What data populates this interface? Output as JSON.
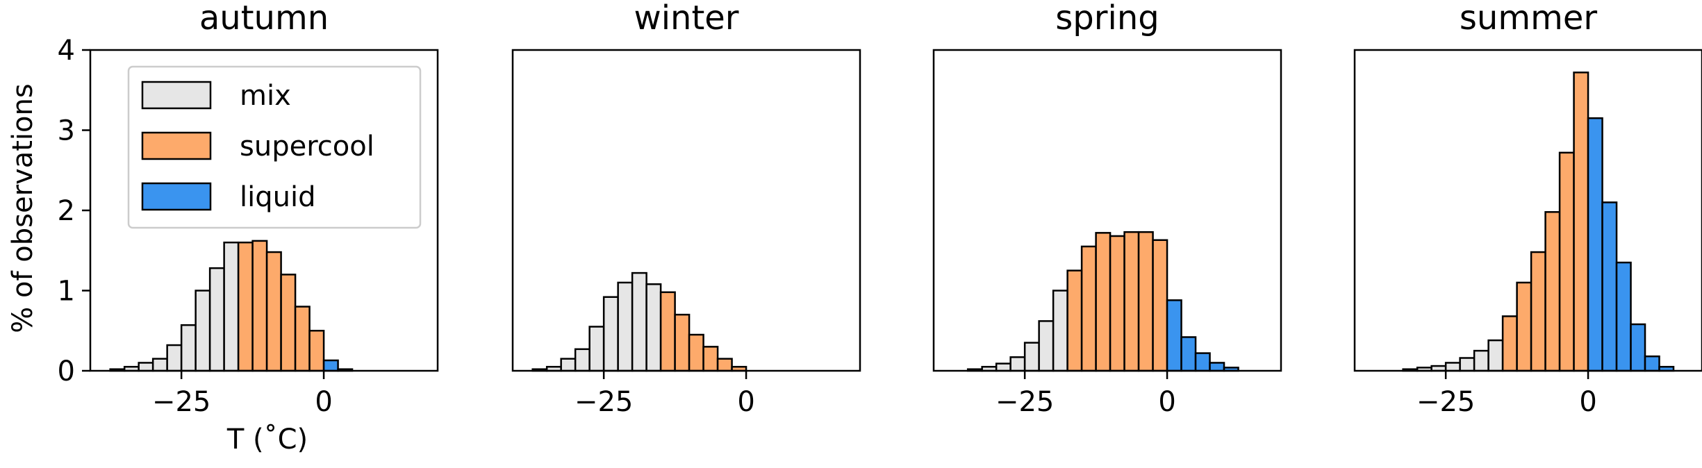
{
  "figure": {
    "ylabel": "% of observations",
    "xlabel": "T (˚C)"
  },
  "legend": {
    "placement": "upper-left of first panel",
    "entries": [
      {
        "label": "mix",
        "color": "#e6e6e6"
      },
      {
        "label": "supercool",
        "color": "#fdaa6b"
      },
      {
        "label": "liquid",
        "color": "#3a94ef"
      }
    ]
  },
  "chart_data": [
    {
      "type": "bar",
      "title": "autumn",
      "xlabel": "T (˚C)",
      "ylabel": "% of observations",
      "xlim": [
        -41,
        20
      ],
      "ylim": [
        0,
        4
      ],
      "xticks": [
        -25,
        0
      ],
      "yticks": [
        0,
        1,
        2,
        3,
        4
      ],
      "bin_width": 2.5,
      "series": [
        {
          "name": "mix",
          "color": "#e6e6e6",
          "x": [
            -37.5,
            -35,
            -32.5,
            -30,
            -27.5,
            -25,
            -22.5,
            -20,
            -17.5
          ],
          "values": [
            0.02,
            0.05,
            0.1,
            0.15,
            0.32,
            0.57,
            1.0,
            1.28,
            1.6
          ]
        },
        {
          "name": "supercool",
          "color": "#fdaa6b",
          "x": [
            -15,
            -12.5,
            -10,
            -7.5,
            -5,
            -2.5
          ],
          "values": [
            1.6,
            1.62,
            1.48,
            1.2,
            0.8,
            0.5
          ]
        },
        {
          "name": "liquid",
          "color": "#3a94ef",
          "x": [
            0,
            2.5
          ],
          "values": [
            0.13,
            0.02
          ]
        }
      ]
    },
    {
      "type": "bar",
      "title": "winter",
      "xlim": [
        -41,
        20
      ],
      "ylim": [
        0,
        4
      ],
      "xticks": [
        -25,
        0
      ],
      "bin_width": 2.5,
      "series": [
        {
          "name": "mix",
          "color": "#e6e6e6",
          "x": [
            -37.5,
            -35,
            -32.5,
            -30,
            -27.5,
            -25,
            -22.5,
            -20,
            -17.5
          ],
          "values": [
            0.02,
            0.05,
            0.15,
            0.27,
            0.55,
            0.92,
            1.1,
            1.22,
            1.08
          ]
        },
        {
          "name": "supercool",
          "color": "#fdaa6b",
          "x": [
            -15,
            -12.5,
            -10,
            -7.5,
            -5,
            -2.5
          ],
          "values": [
            0.98,
            0.7,
            0.45,
            0.3,
            0.15,
            0.05
          ]
        },
        {
          "name": "liquid",
          "color": "#3a94ef",
          "x": [],
          "values": []
        }
      ]
    },
    {
      "type": "bar",
      "title": "spring",
      "xlim": [
        -41,
        20
      ],
      "ylim": [
        0,
        4
      ],
      "xticks": [
        -25,
        0
      ],
      "bin_width": 2.5,
      "series": [
        {
          "name": "mix",
          "color": "#e6e6e6",
          "x": [
            -35,
            -32.5,
            -30,
            -27.5,
            -25,
            -22.5,
            -20
          ],
          "values": [
            0.02,
            0.05,
            0.09,
            0.17,
            0.35,
            0.62,
            1.0
          ]
        },
        {
          "name": "supercool",
          "color": "#fdaa6b",
          "x": [
            -17.5,
            -15,
            -12.5,
            -10,
            -7.5,
            -5,
            -2.5
          ],
          "values": [
            1.25,
            1.55,
            1.72,
            1.68,
            1.73,
            1.73,
            1.63
          ]
        },
        {
          "name": "liquid",
          "color": "#3a94ef",
          "x": [
            0,
            2.5,
            5,
            7.5,
            10
          ],
          "values": [
            0.88,
            0.42,
            0.22,
            0.1,
            0.04
          ]
        }
      ]
    },
    {
      "type": "bar",
      "title": "summer",
      "xlim": [
        -41,
        20
      ],
      "ylim": [
        0,
        4
      ],
      "xticks": [
        -25,
        0
      ],
      "bin_width": 2.5,
      "series": [
        {
          "name": "mix",
          "color": "#e6e6e6",
          "x": [
            -32.5,
            -30,
            -27.5,
            -25,
            -22.5,
            -20,
            -17.5
          ],
          "values": [
            0.02,
            0.04,
            0.06,
            0.1,
            0.16,
            0.25,
            0.38
          ]
        },
        {
          "name": "supercool",
          "color": "#fdaa6b",
          "x": [
            -15,
            -12.5,
            -10,
            -7.5,
            -5,
            -2.5
          ],
          "values": [
            0.68,
            1.1,
            1.48,
            1.98,
            2.72,
            3.72
          ]
        },
        {
          "name": "liquid",
          "color": "#3a94ef",
          "x": [
            0,
            2.5,
            5,
            7.5,
            10,
            12.5
          ],
          "values": [
            3.15,
            2.1,
            1.35,
            0.58,
            0.18,
            0.05
          ]
        }
      ]
    }
  ]
}
